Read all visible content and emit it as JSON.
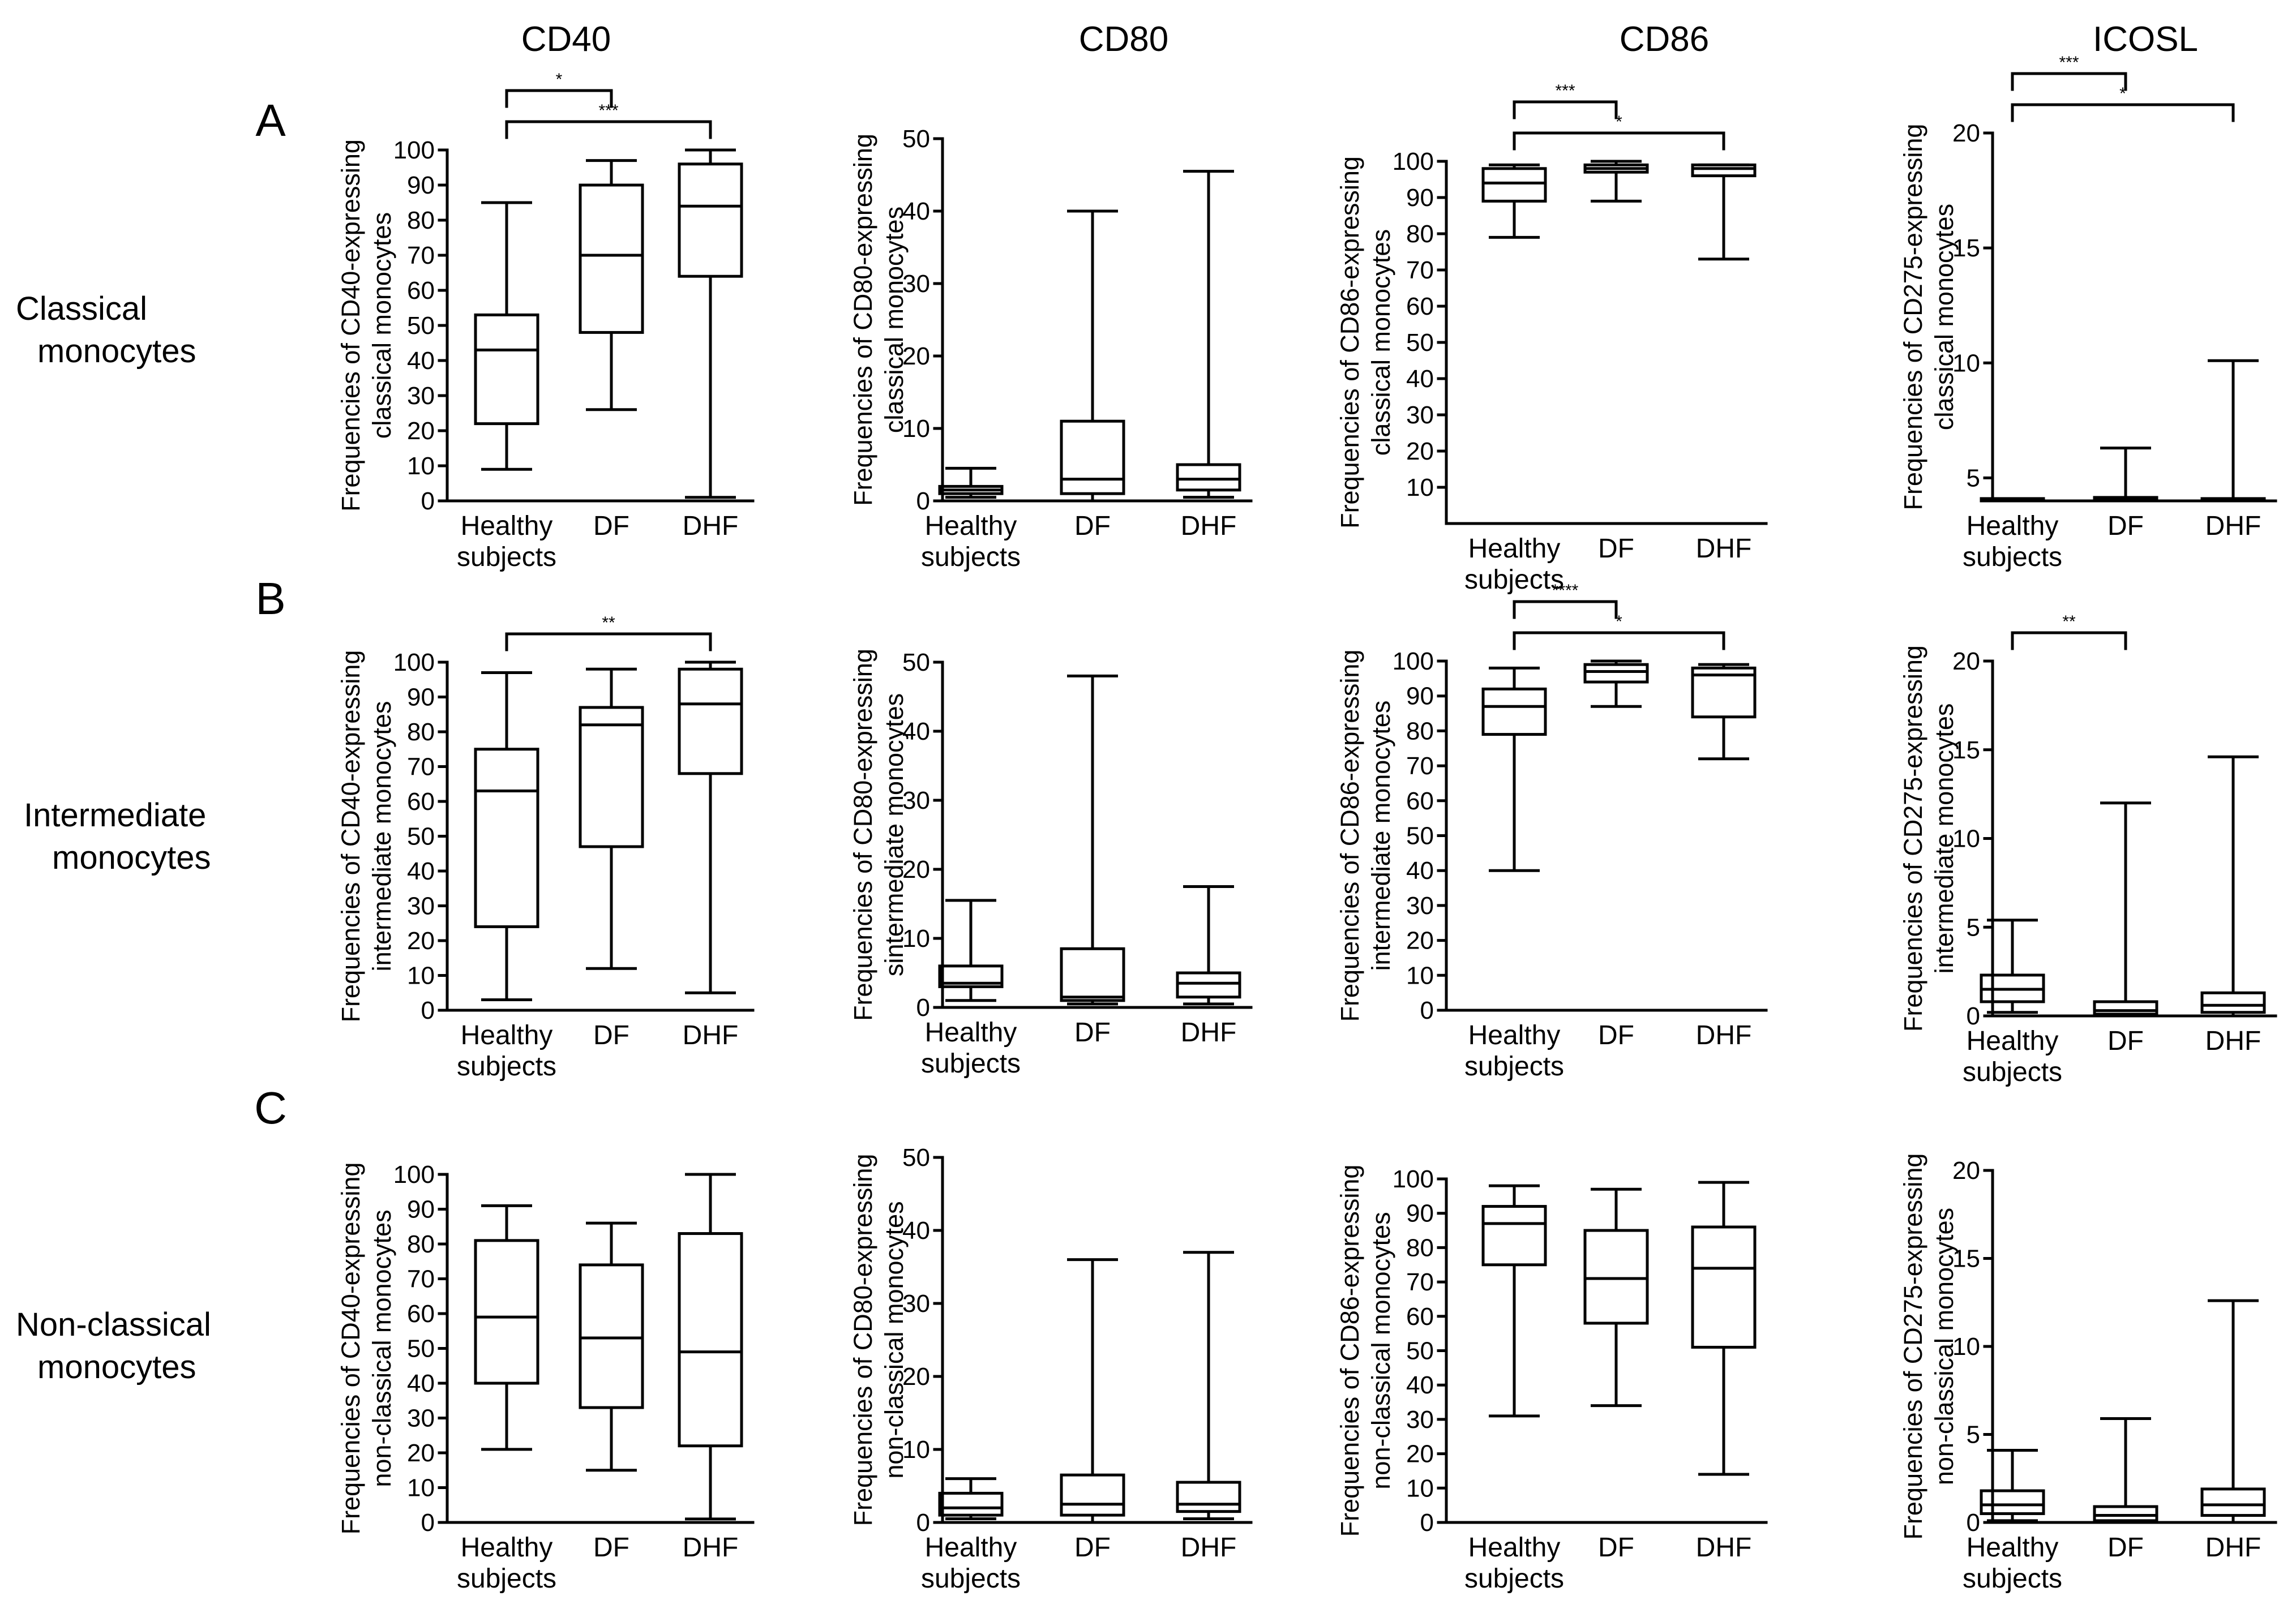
{
  "figure": {
    "columns": [
      "CD40",
      "CD80",
      "CD86",
      "ICOSL"
    ],
    "panel_labels": [
      "A",
      "B",
      "C"
    ],
    "row_labels": [
      [
        "Classical",
        "monocytes"
      ],
      [
        "Intermediate",
        "monocytes"
      ],
      [
        "Non-classical",
        "monocytes"
      ]
    ]
  },
  "chart_data": [
    {
      "type": "box",
      "id": "A-CD40",
      "title": "CD40",
      "ylabel": [
        "Frequencies of CD40-expressing",
        "classical monocytes"
      ],
      "categories": [
        [
          "Healthy",
          "subjects"
        ],
        [
          "DF"
        ],
        [
          "DHF"
        ]
      ],
      "ylim": [
        0,
        100
      ],
      "yticks": [
        0,
        10,
        20,
        30,
        40,
        50,
        60,
        70,
        80,
        90,
        100
      ],
      "boxes": [
        {
          "min": 9,
          "q1": 22,
          "median": 43,
          "q3": 53,
          "max": 85
        },
        {
          "min": 26,
          "q1": 48,
          "median": 70,
          "q3": 90,
          "max": 97
        },
        {
          "min": 1,
          "q1": 64,
          "median": 84,
          "q3": 96,
          "max": 100
        }
      ],
      "significance": [
        {
          "from": 0,
          "to": 1,
          "label": "*"
        },
        {
          "from": 0,
          "to": 2,
          "label": "***"
        }
      ]
    },
    {
      "type": "box",
      "id": "A-CD80",
      "title": "CD80",
      "ylabel": [
        "Frequencies of CD80-expressing",
        "classical monocytes"
      ],
      "categories": [
        [
          "Healthy",
          "subjects"
        ],
        [
          "DF"
        ],
        [
          "DHF"
        ]
      ],
      "ylim": [
        0,
        50
      ],
      "yticks": [
        0,
        10,
        20,
        30,
        40,
        50
      ],
      "boxes": [
        {
          "min": 0.5,
          "q1": 1,
          "median": 1.5,
          "q3": 2,
          "max": 4.5
        },
        {
          "min": 0,
          "q1": 1,
          "median": 3,
          "q3": 11,
          "max": 40
        },
        {
          "min": 0.5,
          "q1": 1.5,
          "median": 3,
          "q3": 5,
          "max": 45.5
        }
      ],
      "significance": []
    },
    {
      "type": "box",
      "id": "A-CD86",
      "title": "CD86",
      "ylabel": [
        "Frequencies of CD86-expressing",
        "classical monocytes"
      ],
      "categories": [
        [
          "Healthy",
          "subjects"
        ],
        [
          "DF"
        ],
        [
          "DHF"
        ]
      ],
      "ylim": [
        0,
        100
      ],
      "yticks": [
        10,
        20,
        30,
        40,
        50,
        60,
        70,
        80,
        90,
        100
      ],
      "boxes": [
        {
          "min": 79,
          "q1": 89,
          "median": 94,
          "q3": 98,
          "max": 99
        },
        {
          "min": 89,
          "q1": 97,
          "median": 98,
          "q3": 99,
          "max": 100
        },
        {
          "min": 73,
          "q1": 96,
          "median": 98,
          "q3": 99,
          "max": 99
        }
      ],
      "significance": [
        {
          "from": 0,
          "to": 1,
          "label": "***"
        },
        {
          "from": 0,
          "to": 2,
          "label": "*"
        }
      ]
    },
    {
      "type": "box",
      "id": "A-ICOSL",
      "title": "ICOSL",
      "ylabel": [
        "Frequencies of CD275-expressing",
        "classical monocytes"
      ],
      "categories": [
        [
          "Healthy",
          "subjects"
        ],
        [
          "DF"
        ],
        [
          "DHF"
        ]
      ],
      "ylim": [
        4,
        20
      ],
      "yticks": [
        5,
        10,
        15,
        20
      ],
      "boxes": [
        {
          "min": 4,
          "q1": 4,
          "median": 4.05,
          "q3": 4.1,
          "max": 4.1
        },
        {
          "min": 4,
          "q1": 4,
          "median": 4.1,
          "q3": 4.15,
          "max": 6.3
        },
        {
          "min": 4,
          "q1": 4,
          "median": 4.05,
          "q3": 4.1,
          "max": 10.1
        }
      ],
      "significance": [
        {
          "from": 0,
          "to": 1,
          "label": "***"
        },
        {
          "from": 0,
          "to": 2,
          "label": "*"
        }
      ]
    },
    {
      "type": "box",
      "id": "B-CD40",
      "title": "CD40",
      "ylabel": [
        "Frequencies of CD40-expressing",
        "intermediate monocytes"
      ],
      "categories": [
        [
          "Healthy",
          "subjects"
        ],
        [
          "DF"
        ],
        [
          "DHF"
        ]
      ],
      "ylim": [
        0,
        100
      ],
      "yticks": [
        0,
        10,
        20,
        30,
        40,
        50,
        60,
        70,
        80,
        90,
        100
      ],
      "boxes": [
        {
          "min": 3,
          "q1": 24,
          "median": 63,
          "q3": 75,
          "max": 97
        },
        {
          "min": 12,
          "q1": 47,
          "median": 82,
          "q3": 87,
          "max": 98
        },
        {
          "min": 5,
          "q1": 68,
          "median": 88,
          "q3": 98,
          "max": 100
        }
      ],
      "significance": [
        {
          "from": 0,
          "to": 2,
          "label": "**"
        }
      ]
    },
    {
      "type": "box",
      "id": "B-CD80",
      "title": "CD80",
      "ylabel": [
        "Frequencies of CD80-expressing",
        "sintermediate monocytes"
      ],
      "categories": [
        [
          "Healthy",
          "subjects"
        ],
        [
          "DF"
        ],
        [
          "DHF"
        ]
      ],
      "ylim": [
        0,
        50
      ],
      "yticks": [
        0,
        10,
        20,
        30,
        40,
        50
      ],
      "boxes": [
        {
          "min": 1,
          "q1": 3,
          "median": 3.5,
          "q3": 6,
          "max": 15.5
        },
        {
          "min": 0.5,
          "q1": 1,
          "median": 1.5,
          "q3": 8.5,
          "max": 48
        },
        {
          "min": 0.5,
          "q1": 1.5,
          "median": 3.5,
          "q3": 5,
          "max": 17.5
        }
      ],
      "significance": []
    },
    {
      "type": "box",
      "id": "B-CD86",
      "title": "CD86",
      "ylabel": [
        "Frequencies of CD86-expressing",
        "intermediate monocytes"
      ],
      "categories": [
        [
          "Healthy",
          "subjects"
        ],
        [
          "DF"
        ],
        [
          "DHF"
        ]
      ],
      "ylim": [
        0,
        100
      ],
      "yticks": [
        0,
        10,
        20,
        30,
        40,
        50,
        60,
        70,
        80,
        90,
        100
      ],
      "boxes": [
        {
          "min": 40,
          "q1": 79,
          "median": 87,
          "q3": 92,
          "max": 98
        },
        {
          "min": 87,
          "q1": 94,
          "median": 97,
          "q3": 99,
          "max": 100
        },
        {
          "min": 72,
          "q1": 84,
          "median": 96,
          "q3": 98,
          "max": 99
        }
      ],
      "significance": [
        {
          "from": 0,
          "to": 1,
          "label": "****"
        },
        {
          "from": 0,
          "to": 2,
          "label": "*"
        }
      ]
    },
    {
      "type": "box",
      "id": "B-ICOSL",
      "title": "ICOSL",
      "ylabel": [
        "Frequencies of CD275-expressing",
        "intermediate monocytes"
      ],
      "categories": [
        [
          "Healthy",
          "subjects"
        ],
        [
          "DF"
        ],
        [
          "DHF"
        ]
      ],
      "ylim": [
        0,
        20
      ],
      "yticks": [
        0,
        5,
        10,
        15,
        20
      ],
      "boxes": [
        {
          "min": 0.2,
          "q1": 0.8,
          "median": 1.5,
          "q3": 2.3,
          "max": 5.4
        },
        {
          "min": 0,
          "q1": 0.1,
          "median": 0.3,
          "q3": 0.8,
          "max": 12
        },
        {
          "min": 0,
          "q1": 0.2,
          "median": 0.6,
          "q3": 1.3,
          "max": 14.6
        }
      ],
      "significance": [
        {
          "from": 0,
          "to": 1,
          "label": "**"
        }
      ]
    },
    {
      "type": "box",
      "id": "C-CD40",
      "title": "CD40",
      "ylabel": [
        "Frequencies of CD40-expressing",
        "non-classical monocytes"
      ],
      "categories": [
        [
          "Healthy",
          "subjects"
        ],
        [
          "DF"
        ],
        [
          "DHF"
        ]
      ],
      "ylim": [
        0,
        100
      ],
      "yticks": [
        0,
        10,
        20,
        30,
        40,
        50,
        60,
        70,
        80,
        90,
        100
      ],
      "boxes": [
        {
          "min": 21,
          "q1": 40,
          "median": 59,
          "q3": 81,
          "max": 91
        },
        {
          "min": 15,
          "q1": 33,
          "median": 53,
          "q3": 74,
          "max": 86
        },
        {
          "min": 1,
          "q1": 22,
          "median": 49,
          "q3": 83,
          "max": 100
        }
      ],
      "significance": []
    },
    {
      "type": "box",
      "id": "C-CD80",
      "title": "CD80",
      "ylabel": [
        "Frequencies of CD80-expressing",
        "non-classical monocytes"
      ],
      "categories": [
        [
          "Healthy",
          "subjects"
        ],
        [
          "DF"
        ],
        [
          "DHF"
        ]
      ],
      "ylim": [
        0,
        50
      ],
      "yticks": [
        0,
        10,
        20,
        30,
        40,
        50
      ],
      "boxes": [
        {
          "min": 0.5,
          "q1": 1,
          "median": 2,
          "q3": 4,
          "max": 6
        },
        {
          "min": 0,
          "q1": 1,
          "median": 2.5,
          "q3": 6.5,
          "max": 36
        },
        {
          "min": 0.5,
          "q1": 1.5,
          "median": 2.5,
          "q3": 5.5,
          "max": 37
        }
      ],
      "significance": []
    },
    {
      "type": "box",
      "id": "C-CD86",
      "title": "CD86",
      "ylabel": [
        "Frequencies of CD86-expressing",
        "non-classical monocytes"
      ],
      "categories": [
        [
          "Healthy",
          "subjects"
        ],
        [
          "DF"
        ],
        [
          "DHF"
        ]
      ],
      "ylim": [
        0,
        100
      ],
      "yticks": [
        0,
        10,
        20,
        30,
        40,
        50,
        60,
        70,
        80,
        90,
        100
      ],
      "boxes": [
        {
          "min": 31,
          "q1": 75,
          "median": 87,
          "q3": 92,
          "max": 98
        },
        {
          "min": 34,
          "q1": 58,
          "median": 71,
          "q3": 85,
          "max": 97
        },
        {
          "min": 14,
          "q1": 51,
          "median": 74,
          "q3": 86,
          "max": 99
        }
      ],
      "significance": []
    },
    {
      "type": "box",
      "id": "C-ICOSL",
      "title": "ICOSL",
      "ylabel": [
        "Frequencies of CD275-expressing",
        "non-classical monocytes"
      ],
      "categories": [
        [
          "Healthy",
          "subjects"
        ],
        [
          "DF"
        ],
        [
          "DHF"
        ]
      ],
      "ylim": [
        0,
        20
      ],
      "yticks": [
        0,
        5,
        10,
        15,
        20
      ],
      "boxes": [
        {
          "min": 0.1,
          "q1": 0.5,
          "median": 1,
          "q3": 1.8,
          "max": 4.1
        },
        {
          "min": 0,
          "q1": 0.1,
          "median": 0.4,
          "q3": 0.9,
          "max": 5.9
        },
        {
          "min": 0,
          "q1": 0.4,
          "median": 1,
          "q3": 1.9,
          "max": 12.6
        }
      ],
      "significance": []
    }
  ]
}
